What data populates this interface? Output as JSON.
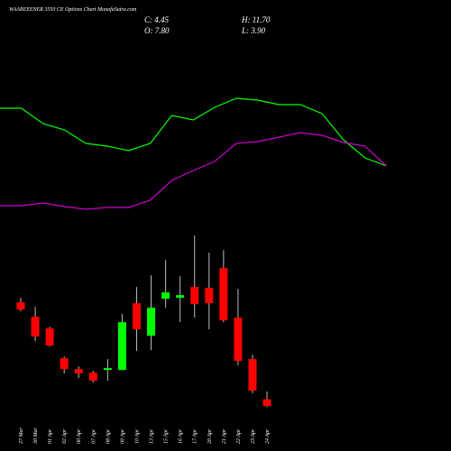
{
  "chart_data": [
    {
      "type": "candlestick",
      "title": "WAAREEENER 3550 CE Options Chart MunafaSutra.com",
      "summary": [
        "C: 4.45",
        "H: 11.70",
        "O: 7.80",
        "L: 3.90"
      ],
      "categories": [
        "27 Mar",
        "30 Mar",
        "01 Apr",
        "02 Apr",
        "06 Apr",
        "07 Apr",
        "08 Apr",
        "09 Apr",
        "10 Apr",
        "13 Apr",
        "15 Apr",
        "16 Apr",
        "17 Apr",
        "20 Apr",
        "21 Apr",
        "22 Apr",
        "23 Apr",
        "24 Apr"
      ],
      "open": [
        56.2,
        49.0,
        43.15,
        28.3,
        22.9,
        21.1,
        22.45,
        22.45,
        55.75,
        39.55,
        58.0,
        58.45,
        63.85,
        63.4,
        73.3,
        48.55,
        27.85,
        7.8
      ],
      "high": [
        58.45,
        53.95,
        44.05,
        29.2,
        24.25,
        22.0,
        27.85,
        50.35,
        63.85,
        69.7,
        77.35,
        69.25,
        89.5,
        80.95,
        82.3,
        62.95,
        30.1,
        11.7
      ],
      "low": [
        51.7,
        36.85,
        34.15,
        20.65,
        18.4,
        16.15,
        17.05,
        22.45,
        31.9,
        32.35,
        53.5,
        46.3,
        48.55,
        42.7,
        46.3,
        24.7,
        10.75,
        3.9
      ],
      "close": [
        52.6,
        39.1,
        34.6,
        22.9,
        20.65,
        17.05,
        23.35,
        46.3,
        42.7,
        53.5,
        61.15,
        59.8,
        55.3,
        55.75,
        47.2,
        26.95,
        12.1,
        4.45
      ],
      "up_color": "#00ff00",
      "down_color": "#ff0000",
      "ylim": [
        0,
        95
      ]
    },
    {
      "type": "line",
      "ylim": [
        0,
        150
      ],
      "series": [
        {
          "color": "#00ff00",
          "values": [
            130,
            130,
            113,
            106,
            91,
            88,
            83,
            91,
            122,
            117,
            131,
            141,
            139,
            134,
            134,
            124,
            95,
            75,
            66
          ]
        },
        {
          "color": "#cc00cc",
          "values": [
            22,
            22,
            25,
            21,
            18,
            20,
            20,
            28,
            50,
            61,
            71,
            91,
            93,
            98,
            103,
            100,
            92,
            88,
            66
          ]
        }
      ]
    }
  ]
}
